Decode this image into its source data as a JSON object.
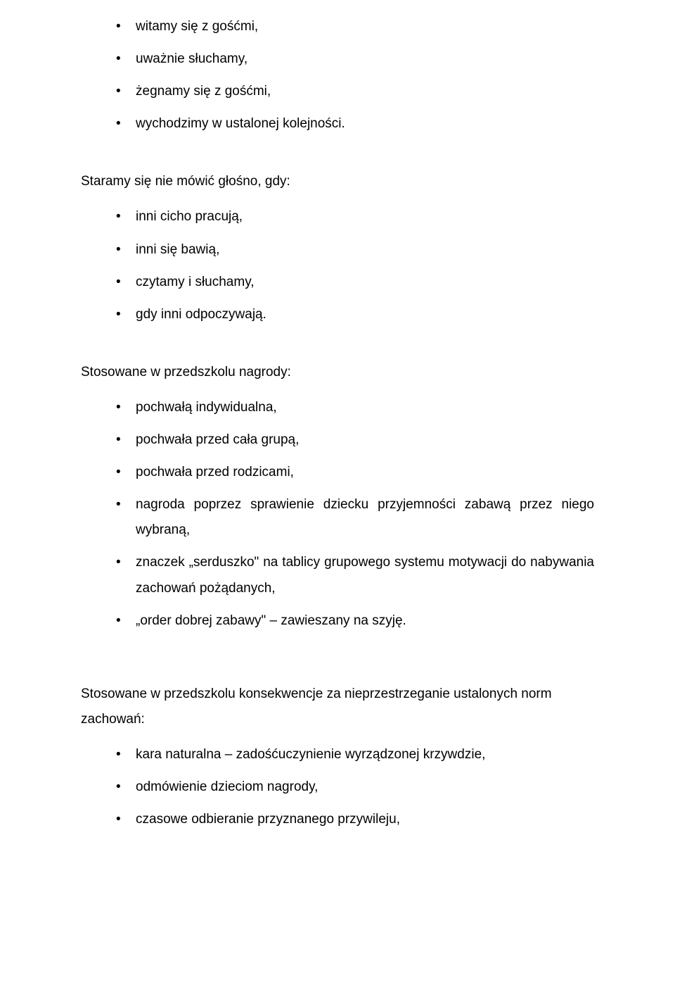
{
  "text_color": "#000000",
  "background_color": "#ffffff",
  "font_family": "Comic Sans MS",
  "base_font_size_pt": 14,
  "section1": {
    "items": [
      "witamy się z gośćmi,",
      "uważnie słuchamy,",
      "żegnamy się z gośćmi,",
      "wychodzimy w ustalonej kolejności."
    ]
  },
  "section2": {
    "heading": "Staramy się nie mówić głośno, gdy:",
    "items": [
      "inni cicho pracują,",
      "inni się bawią,",
      "czytamy i słuchamy,",
      "gdy inni odpoczywają."
    ]
  },
  "section3": {
    "heading": "Stosowane w przedszkolu nagrody:",
    "items": [
      "pochwałą indywidualna,",
      "pochwała przed cała grupą,",
      "pochwała przed rodzicami,",
      "nagroda poprzez sprawienie dziecku przyjemności zabawą przez niego wybraną,",
      "znaczek „serduszko\" na tablicy grupowego systemu motywacji do nabywania zachowań pożądanych,",
      "„order dobrej zabawy\" – zawieszany na szyję."
    ]
  },
  "section4": {
    "heading": "Stosowane w przedszkolu konsekwencje za nieprzestrzeganie ustalonych norm zachowań:",
    "items": [
      "kara naturalna – zadośćuczynienie wyrządzonej krzywdzie,",
      "odmówienie dzieciom nagrody,",
      "czasowe odbieranie przyznanego przywileju,"
    ]
  }
}
